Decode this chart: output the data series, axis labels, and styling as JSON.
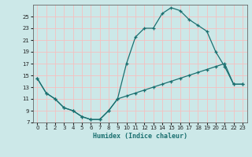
{
  "xlabel": "Humidex (Indice chaleur)",
  "bg_color": "#cce8e8",
  "grid_color": "#f5c0c0",
  "line_color": "#1a7070",
  "xlim": [
    -0.5,
    23.5
  ],
  "ylim": [
    7,
    27
  ],
  "yticks": [
    7,
    9,
    11,
    13,
    15,
    17,
    19,
    21,
    23,
    25
  ],
  "xticks": [
    0,
    1,
    2,
    3,
    4,
    5,
    6,
    7,
    8,
    9,
    10,
    11,
    12,
    13,
    14,
    15,
    16,
    17,
    18,
    19,
    20,
    21,
    22,
    23
  ],
  "curve1_x": [
    0,
    1,
    2,
    3,
    4,
    5,
    6,
    7,
    8,
    9,
    10,
    11,
    12,
    13,
    14,
    15,
    16,
    17,
    18,
    19,
    20,
    21,
    22,
    23
  ],
  "curve1_y": [
    14.5,
    12.0,
    11.0,
    9.5,
    9.0,
    8.0,
    7.5,
    7.5,
    9.0,
    11.0,
    17.0,
    21.5,
    23.0,
    23.0,
    25.5,
    26.5,
    26.0,
    24.5,
    23.5,
    22.5,
    19.0,
    16.5,
    13.5,
    13.5
  ],
  "curve2_x": [
    0,
    1,
    2,
    3,
    4,
    5,
    6,
    7,
    8,
    9,
    10,
    11,
    12,
    13,
    14,
    15,
    16,
    17,
    18,
    19,
    20,
    21,
    22,
    23
  ],
  "curve2_y": [
    14.5,
    12.0,
    11.0,
    9.5,
    9.0,
    8.0,
    7.5,
    7.5,
    9.0,
    11.0,
    11.5,
    12.0,
    12.5,
    13.0,
    13.5,
    14.0,
    14.5,
    15.0,
    15.5,
    16.0,
    16.5,
    17.0,
    13.5,
    13.5
  ],
  "xlabel_fontsize": 6.0,
  "tick_fontsize": 5.0
}
